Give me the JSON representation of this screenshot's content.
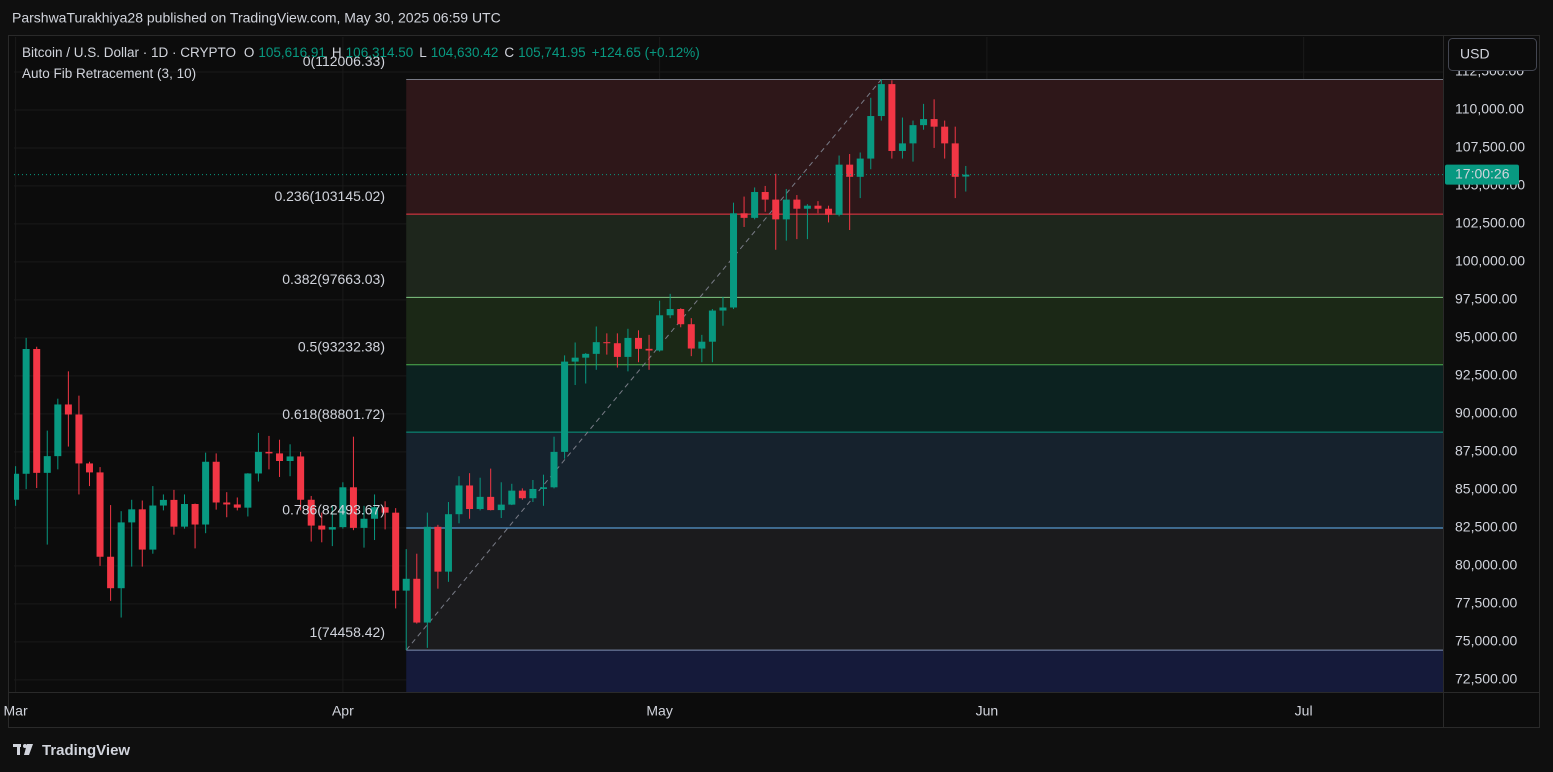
{
  "header": {
    "publisher": "ParshwaTurakhiya28 published on TradingView.com, May 30, 2025 06:59 UTC",
    "symbol": "Bitcoin / U.S. Dollar · 1D · CRYPTO",
    "ohlc": [
      {
        "key": "O",
        "value": "105,616.91"
      },
      {
        "key": "H",
        "value": "106,314.50"
      },
      {
        "key": "L",
        "value": "104,630.42"
      },
      {
        "key": "C",
        "value": "105,741.95"
      }
    ],
    "change": "+124.65 (+0.12%)",
    "indicator": "Auto Fib Retracement (3, 10)",
    "currency": "USD",
    "countdown": "17:00:26",
    "brand": "TradingView"
  },
  "chart_data": {
    "type": "candlestick",
    "x": [
      0,
      1,
      2,
      3,
      4,
      5,
      6,
      7,
      8,
      9,
      10,
      11,
      12,
      13,
      14,
      15,
      16,
      17,
      18,
      19,
      20,
      21,
      22,
      23,
      24,
      25,
      26,
      27,
      28,
      29,
      30,
      31,
      32,
      33,
      34,
      35,
      36,
      37,
      38,
      39,
      40,
      41,
      42,
      43,
      44,
      45,
      46,
      47,
      48,
      49,
      50,
      51,
      52,
      53,
      54,
      55,
      56,
      57,
      58,
      59,
      60,
      61,
      62,
      63,
      64,
      65,
      66,
      67,
      68,
      69,
      70,
      71,
      72,
      73,
      74,
      75,
      76,
      77,
      78,
      79,
      80,
      81,
      82,
      83,
      84,
      85,
      86,
      87,
      88,
      89,
      90
    ],
    "open": [
      84350,
      86060,
      94270,
      86120,
      87220,
      90620,
      89960,
      86740,
      86150,
      80600,
      78530,
      82860,
      83720,
      81070,
      83970,
      84340,
      82580,
      84070,
      82720,
      86850,
      84170,
      84040,
      83830,
      86080,
      87500,
      87400,
      86900,
      87200,
      84350,
      82650,
      82390,
      82550,
      85170,
      82500,
      83100,
      83860,
      83500,
      78370,
      79150,
      76270,
      82570,
      79620,
      83400,
      85290,
      83740,
      84540,
      83670,
      84030,
      84950,
      84450,
      85060,
      85170,
      87500,
      93440,
      93700,
      93950,
      94720,
      94650,
      93750,
      95000,
      94280,
      94170,
      96490,
      96900,
      95900,
      94300,
      94750,
      96800,
      97000,
      103200,
      102900,
      104600,
      104100,
      102800,
      104100,
      103500,
      103700,
      103500,
      103100,
      106400,
      105600,
      106800,
      109600,
      111700,
      107300,
      107800,
      109000,
      109400,
      108900,
      107800,
      105616.91
    ],
    "high": [
      86560,
      95000,
      94420,
      88900,
      91000,
      92800,
      91200,
      86850,
      86500,
      84000,
      83600,
      84350,
      84300,
      85250,
      84700,
      85000,
      84700,
      84100,
      87450,
      87400,
      84850,
      84500,
      86100,
      88750,
      88550,
      88300,
      88000,
      87500,
      84600,
      83500,
      84000,
      85500,
      88500,
      83950,
      84700,
      84250,
      83800,
      81100,
      80800,
      83500,
      82700,
      84200,
      85900,
      86100,
      85800,
      86400,
      85500,
      85400,
      85100,
      85650,
      86000,
      88500,
      93850,
      94700,
      94000,
      95750,
      95300,
      95300,
      95600,
      95500,
      95200,
      97450,
      97900,
      96950,
      96300,
      95200,
      96900,
      97700,
      103900,
      104300,
      104900,
      105000,
      105800,
      104800,
      104400,
      103800,
      104000,
      103700,
      107000,
      107100,
      107200,
      110800,
      112006.33,
      111950,
      109500,
      109300,
      110400,
      110700,
      109300,
      108900,
      106314.5
    ],
    "low": [
      83950,
      85050,
      85120,
      81400,
      86350,
      87850,
      84700,
      85250,
      80000,
      77700,
      76600,
      79950,
      79950,
      80800,
      83650,
      82050,
      82450,
      81150,
      82150,
      83700,
      83200,
      83650,
      83250,
      85550,
      86350,
      85850,
      85900,
      83650,
      81600,
      81550,
      81300,
      82450,
      82350,
      81200,
      81700,
      82400,
      77200,
      74458.42,
      76200,
      74600,
      78500,
      78950,
      82800,
      83100,
      83650,
      83650,
      83150,
      84000,
      84350,
      84200,
      83950,
      85100,
      87050,
      91900,
      92000,
      92900,
      93900,
      93050,
      92800,
      93400,
      92900,
      94100,
      96300,
      95700,
      93800,
      93400,
      93400,
      95800,
      96900,
      102300,
      102800,
      103300,
      100800,
      101400,
      101500,
      101500,
      103200,
      102600,
      103000,
      102100,
      104200,
      106100,
      109300,
      106800,
      106800,
      106600,
      108700,
      107500,
      106800,
      104200,
      104630.42
    ],
    "close": [
      86060,
      94270,
      86120,
      87220,
      90620,
      89960,
      86740,
      86150,
      80600,
      78530,
      82860,
      83720,
      81070,
      83970,
      84340,
      82580,
      84070,
      82720,
      86850,
      84170,
      84040,
      83830,
      86080,
      87500,
      87400,
      86900,
      87200,
      84350,
      82650,
      82390,
      82550,
      85170,
      82500,
      83100,
      83860,
      83500,
      78370,
      79150,
      76270,
      82570,
      79620,
      83400,
      85290,
      83740,
      84540,
      83670,
      84030,
      84950,
      84450,
      85060,
      85170,
      87500,
      93440,
      93700,
      93950,
      94720,
      94650,
      93750,
      95000,
      94280,
      94170,
      96490,
      96900,
      95900,
      94300,
      94750,
      96800,
      97000,
      103200,
      102900,
      104600,
      104100,
      102800,
      104100,
      103500,
      103700,
      103500,
      103100,
      106400,
      105600,
      106800,
      109600,
      111700,
      107300,
      107800,
      109000,
      109400,
      108900,
      107800,
      105600,
      105741.95
    ],
    "up_color": "#089981",
    "down_color": "#f23645",
    "xlim": [
      -0.15,
      135.2
    ],
    "xticks": [
      {
        "value": 0,
        "label": "Mar"
      },
      {
        "value": 31,
        "label": "Apr"
      },
      {
        "value": 61,
        "label": "May"
      },
      {
        "value": 92,
        "label": "Jun"
      },
      {
        "value": 122,
        "label": "Jul"
      }
    ],
    "ylim": [
      71700,
      114800
    ],
    "yticks": [
      {
        "value": 72500,
        "label": "72,500.00"
      },
      {
        "value": 75000,
        "label": "75,000.00"
      },
      {
        "value": 77500,
        "label": "77,500.00"
      },
      {
        "value": 80000,
        "label": "80,000.00"
      },
      {
        "value": 82500,
        "label": "82,500.00"
      },
      {
        "value": 85000,
        "label": "85,000.00"
      },
      {
        "value": 87500,
        "label": "87,500.00"
      },
      {
        "value": 90000,
        "label": "90,000.00"
      },
      {
        "value": 92500,
        "label": "92,500.00"
      },
      {
        "value": 95000,
        "label": "95,000.00"
      },
      {
        "value": 97500,
        "label": "97,500.00"
      },
      {
        "value": 100000,
        "label": "100,000.00"
      },
      {
        "value": 102500,
        "label": "102,500.00"
      },
      {
        "value": 105000,
        "label": "105,000.00"
      },
      {
        "value": 107500,
        "label": "107,500.00"
      },
      {
        "value": 110000,
        "label": "110,000.00"
      },
      {
        "value": 112500,
        "label": "112,500.00"
      }
    ],
    "grid": true,
    "fib": {
      "anchors_x": [
        37,
        82
      ],
      "trend_color": "#787b86",
      "levels": [
        {
          "value": 112006.33,
          "label": "0(112006.33)",
          "color": "#787b86",
          "fill": "#2e1719"
        },
        {
          "value": 103145.02,
          "label": "0.236(103145.02)",
          "color": "#f23645",
          "fill": "#1e261c"
        },
        {
          "value": 97663.03,
          "label": "0.382(97663.03)",
          "color": "#81c784",
          "fill": "#1b2816"
        },
        {
          "value": 93232.38,
          "label": "0.5(93232.38)",
          "color": "#4caf50",
          "fill": "#0c2220"
        },
        {
          "value": 88801.72,
          "label": "0.618(88801.72)",
          "color": "#089981",
          "fill": "#16222d"
        },
        {
          "value": 82493.67,
          "label": "0.786(82493.67)",
          "color": "#64b5f6",
          "fill": "#1b1b1d"
        },
        {
          "value": 74458.42,
          "label": "1(74458.42)",
          "color": "#7f8fb0",
          "fill": "#151a3a"
        }
      ]
    }
  }
}
